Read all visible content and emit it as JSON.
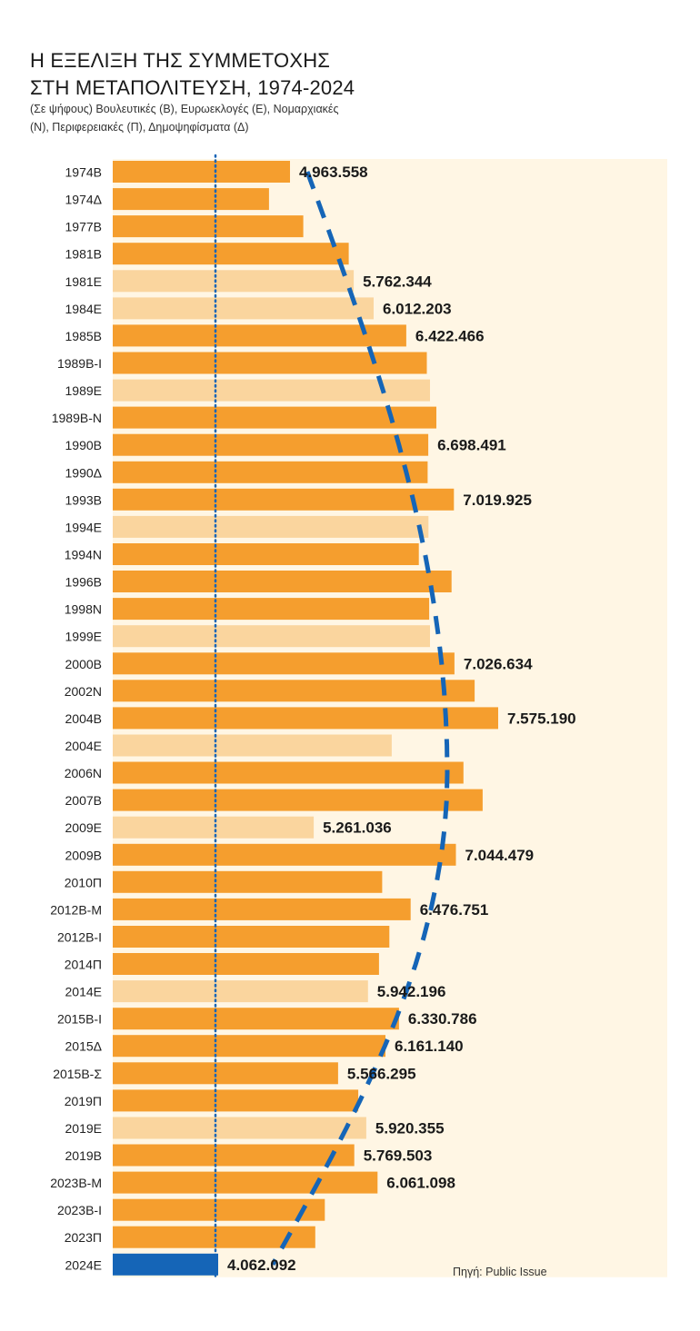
{
  "header": {
    "title_line1": "Η ΕΞΕΛΙΞΗ ΤΗΣ ΣΥΜΜΕΤΟΧΗΣ",
    "title_line2": "ΣΤΗ ΜΕΤΑΠΟΛΙΤΕΥΣΗ, 1974-2024",
    "subtitle_line1": "(Σε ψήφους) Βουλευτικές (Β), Ευρωεκλογές (Ε), Νομαρχιακές",
    "subtitle_line2": "(Ν), Περιφερειακές (Π), Δημοψηφίσματα (Δ)"
  },
  "source": "Πηγή: Public Issue",
  "colors": {
    "main": "#F59E2E",
    "light": "#FAD59E",
    "highlight": "#1565B7",
    "trend": "#1565B7",
    "dotted_line": "#1565B7",
    "stripe": "#FFF6E4",
    "label": "#1a1a1a"
  },
  "chart_data": {
    "type": "bar",
    "orientation": "horizontal",
    "categories": [
      "1974Β",
      "1974Δ",
      "1977Β",
      "1981Β",
      "1981Ε",
      "1984Ε",
      "1985Β",
      "1989Β-Ι",
      "1989Ε",
      "1989Β-Ν",
      "1990Β",
      "1990Δ",
      "1993Β",
      "1994Ε",
      "1994Ν",
      "1996Β",
      "1998Ν",
      "1999Ε",
      "2000Β",
      "2002Ν",
      "2004Β",
      "2004Ε",
      "2006Ν",
      "2007Β",
      "2009Ε",
      "2009Β",
      "2010Π",
      "2012Β-Μ",
      "2012Β-Ι",
      "2014Π",
      "2014Ε",
      "2015Β-Ι",
      "2015Δ",
      "2015Β-Σ",
      "2019Π",
      "2019Ε",
      "2019Β",
      "2023Β-Μ",
      "2023Β-Ι",
      "2023Π",
      "2024Ε"
    ],
    "values": [
      4963558,
      4700000,
      5130000,
      5700000,
      5762344,
      6012203,
      6422466,
      6680000,
      6720000,
      6800000,
      6698491,
      6690000,
      7019925,
      6700000,
      6580000,
      6990000,
      6710000,
      6720000,
      7026634,
      7280000,
      7575190,
      6240000,
      7140000,
      7380000,
      5261036,
      7044479,
      6120000,
      6476751,
      6210000,
      6080000,
      5942196,
      6330786,
      6161140,
      5566295,
      5820000,
      5920355,
      5769503,
      6061098,
      5400000,
      5280000,
      4062092
    ],
    "kinds": [
      "main",
      "main",
      "main",
      "main",
      "light",
      "light",
      "main",
      "main",
      "light",
      "main",
      "main",
      "main",
      "main",
      "light",
      "main",
      "main",
      "main",
      "light",
      "main",
      "main",
      "main",
      "light",
      "main",
      "main",
      "light",
      "main",
      "main",
      "main",
      "main",
      "main",
      "light",
      "main",
      "main",
      "main",
      "main",
      "light",
      "main",
      "main",
      "main",
      "main",
      "highlight"
    ],
    "data_labels": [
      "4.963.558",
      "",
      "",
      "",
      "5.762.344",
      "6.012.203",
      "6.422.466",
      "",
      "",
      "",
      "6.698.491",
      "",
      "7.019.925",
      "",
      "",
      "",
      "",
      "",
      "7.026.634",
      "",
      "7.575.190",
      "",
      "",
      "",
      "5.261.036",
      "7.044.479",
      "",
      "6.476.751",
      "",
      "",
      "5.942.196",
      "6.330.786",
      "6.161.140",
      "5.566.295",
      "",
      "5.920.355",
      "5.769.503",
      "6.061.098",
      "",
      "",
      "4.062.092"
    ],
    "reference_line": 4062092,
    "trend_line": "dashed curve following the general trend of the values",
    "grid": false,
    "legend": "none"
  }
}
